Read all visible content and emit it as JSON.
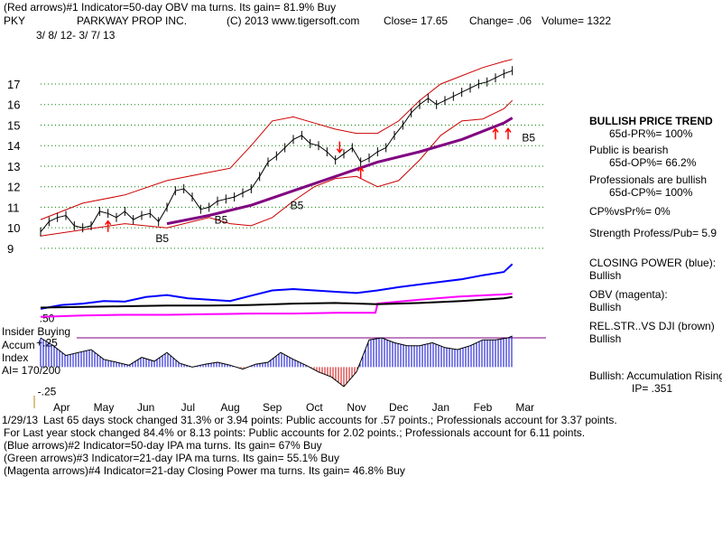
{
  "header": {
    "line1": "(Red arrows)#1 Indicator=50-day OBV ma turns. Its gain= 81.9% Buy",
    "symbol": "PKY",
    "company": "PARKWAY PROP INC.",
    "copyright": "(C) 2013 www.tigersoft.com",
    "close": "Close= 17.65",
    "change": "Change= .06",
    "volume": "Volume= 1322",
    "date_range": "3/ 8/ 12- 3/ 7/ 13"
  },
  "right_panel": {
    "trend_title": "BULLISH PRICE TREND",
    "pr": "65d-PR%= 100%",
    "public_title": "Public is bearish",
    "op": "65d-OP%= 66.2%",
    "pro_title": "Professionals are bullish",
    "cp": "65d-CP%= 100%",
    "cpvspr": "CP%vsPr%= 0%",
    "strength": "Strength Profess/Pub= 5.9",
    "closing_power_title": "CLOSING POWER (blue):",
    "closing_power_val": "Bullish",
    "obv_title": "OBV (magenta):",
    "obv_val": "Bullish",
    "relstr_title": "REL.STR..VS DJI (brown)",
    "relstr_val": "Bullish",
    "accum_title": "Bullish: Accumulation Rising",
    "ip": "IP= .351"
  },
  "left_labels": {
    "insider": "Insider Buying",
    "accum": "Accum",
    "index": "Index",
    "ai": "AI= 170/200"
  },
  "footer": {
    "line1": "Last 65 days stock changed 31.3% or 3.94 points: Public accounts for .57 points.; Professionals account for 3.37 points.",
    "overlap": "1/29/13",
    "line2": "For Last year stock changed 84.4% or 8.13 points: Public accounts for 2.02 points.; Professionals account for 6.11 points.",
    "line3": "(Blue arrows)#2 Indicator=50-day IPA ma turns. Its gain= 67% Buy",
    "line4": "(Green arrows)#3 Indicator=21-day IPA ma turns. Its gain= 55.1% Buy",
    "line5": "(Magenta arrows)#4 Indicator=21-day Closing Power ma turns. Its gain= 46.8% Buy"
  },
  "chart_data": {
    "type": "line",
    "title": "PKY PARKWAY PROP INC.",
    "price_axis": {
      "ticks": [
        17,
        16,
        15,
        14,
        13,
        12,
        11,
        10,
        9
      ],
      "ylim": [
        8.6,
        18.1
      ]
    },
    "accum_axis": {
      "ticks": [
        ".50",
        "+.25",
        "-.25"
      ],
      "ylim": [
        -0.32,
        0.55
      ]
    },
    "months": [
      "Apr",
      "May",
      "Jun",
      "Jul",
      "Aug",
      "Sep",
      "Oct",
      "Nov",
      "Dec",
      "Jan",
      "Feb",
      "Mar"
    ],
    "month_index": [
      0.5,
      1.5,
      2.5,
      3.5,
      4.5,
      5.5,
      6.5,
      7.5,
      8.5,
      9.5,
      10.5,
      11.5
    ],
    "x_range": [
      0,
      12
    ],
    "price_series": {
      "x": [
        0,
        0.2,
        0.4,
        0.6,
        0.8,
        1.0,
        1.2,
        1.4,
        1.6,
        1.8,
        2.0,
        2.2,
        2.4,
        2.6,
        2.8,
        3.0,
        3.2,
        3.4,
        3.6,
        3.8,
        4.0,
        4.2,
        4.4,
        4.6,
        4.8,
        5.0,
        5.2,
        5.4,
        5.6,
        5.8,
        6.0,
        6.2,
        6.4,
        6.6,
        6.8,
        7.0,
        7.2,
        7.4,
        7.6,
        7.8,
        8.0,
        8.2,
        8.4,
        8.6,
        8.8,
        9.0,
        9.2,
        9.4,
        9.6,
        9.8,
        10.0,
        10.2,
        10.4,
        10.6,
        10.8,
        11.0,
        11.2
      ],
      "values": [
        9.8,
        10.3,
        10.5,
        10.6,
        10.1,
        10.0,
        10.1,
        10.8,
        10.7,
        10.5,
        10.8,
        10.4,
        10.6,
        10.7,
        10.3,
        11.0,
        11.8,
        11.9,
        11.5,
        10.9,
        11.0,
        11.3,
        11.4,
        11.5,
        11.7,
        11.9,
        12.5,
        13.2,
        13.5,
        13.9,
        14.3,
        14.5,
        14.1,
        14.0,
        13.7,
        13.3,
        13.6,
        13.9,
        13.2,
        13.4,
        13.7,
        13.9,
        14.5,
        15.0,
        15.6,
        16.0,
        16.3,
        16.0,
        16.2,
        16.4,
        16.6,
        16.8,
        17.0,
        17.1,
        17.3,
        17.5,
        17.65
      ]
    },
    "ma_series": {
      "x": [
        3.0,
        4.0,
        5.0,
        6.0,
        7.0,
        8.0,
        9.0,
        10.0,
        11.0,
        11.2
      ],
      "values": [
        10.2,
        10.6,
        11.1,
        11.8,
        12.5,
        13.2,
        13.7,
        14.3,
        15.1,
        15.35
      ]
    },
    "upper_band": {
      "x": [
        0,
        1,
        2,
        3,
        4,
        4.5,
        5,
        5.5,
        6,
        6.5,
        7,
        7.5,
        8,
        8.5,
        9,
        9.5,
        10,
        10.5,
        11,
        11.2
      ],
      "values": [
        10.4,
        11.2,
        11.6,
        12.3,
        12.7,
        12.9,
        14.0,
        15.2,
        15.4,
        15.1,
        14.8,
        14.6,
        14.6,
        15.2,
        16.2,
        17.0,
        17.4,
        17.8,
        18.1,
        18.2
      ]
    },
    "lower_band": {
      "x": [
        0,
        1,
        2,
        3,
        4,
        4.5,
        5,
        5.5,
        6,
        6.5,
        7,
        7.5,
        8,
        8.5,
        9,
        9.5,
        10,
        10.5,
        11,
        11.2
      ],
      "values": [
        9.6,
        9.9,
        10.2,
        10.0,
        10.5,
        10.2,
        10.1,
        10.5,
        11.3,
        12.0,
        12.4,
        12.5,
        12.0,
        12.3,
        13.3,
        14.5,
        15.2,
        15.3,
        15.8,
        16.2
      ]
    },
    "closing_power": {
      "x": [
        0,
        0.5,
        1,
        1.5,
        2,
        2.5,
        3,
        3.5,
        4,
        4.5,
        5,
        5.5,
        6,
        6.5,
        7,
        7.5,
        8,
        8.5,
        9,
        9.5,
        10,
        10.5,
        11,
        11.2
      ],
      "values": [
        0.22,
        0.28,
        0.3,
        0.34,
        0.33,
        0.4,
        0.43,
        0.38,
        0.36,
        0.34,
        0.42,
        0.5,
        0.52,
        0.5,
        0.48,
        0.46,
        0.5,
        0.55,
        0.59,
        0.63,
        0.67,
        0.73,
        0.78,
        0.9
      ]
    },
    "obv": {
      "x": [
        0,
        1,
        2,
        3,
        4,
        5,
        6,
        7,
        7.95,
        8.0,
        9,
        10,
        11,
        11.2
      ],
      "values": [
        0.1,
        0.12,
        0.13,
        0.13,
        0.14,
        0.15,
        0.15,
        0.16,
        0.16,
        0.3,
        0.36,
        0.41,
        0.44,
        0.45
      ]
    },
    "rel_strength": {
      "x": [
        0,
        1,
        2,
        3,
        4,
        5,
        6,
        7,
        8,
        9,
        10,
        11,
        11.2
      ],
      "values": [
        0.24,
        0.25,
        0.26,
        0.27,
        0.27,
        0.28,
        0.3,
        0.31,
        0.29,
        0.31,
        0.34,
        0.38,
        0.4
      ]
    },
    "accum_series": {
      "x": [
        0,
        0.3,
        0.6,
        0.9,
        1.2,
        1.5,
        1.8,
        2.1,
        2.4,
        2.7,
        3.0,
        3.3,
        3.6,
        3.9,
        4.2,
        4.5,
        4.8,
        5.1,
        5.4,
        5.7,
        6.0,
        6.3,
        6.6,
        6.9,
        7.2,
        7.5,
        7.8,
        8.1,
        8.4,
        8.7,
        9.0,
        9.3,
        9.6,
        9.9,
        10.2,
        10.5,
        10.8,
        11.1,
        11.2
      ],
      "values": [
        0.3,
        0.22,
        0.12,
        0.15,
        0.18,
        0.08,
        0.05,
        0.02,
        0.1,
        0.06,
        0.15,
        0.04,
        0.0,
        0.03,
        0.05,
        0.02,
        -0.02,
        0.03,
        0.05,
        0.15,
        0.08,
        0.02,
        -0.05,
        -0.1,
        -0.2,
        -0.05,
        0.28,
        0.3,
        0.25,
        0.22,
        0.22,
        0.25,
        0.2,
        0.18,
        0.22,
        0.28,
        0.28,
        0.3,
        0.32
      ]
    },
    "annotations": [
      "B5",
      "B5",
      "B5",
      "B5"
    ]
  },
  "colors": {
    "price": "#000000",
    "ma": "#800080",
    "band": "#cc0000",
    "closing_power": "#0000ff",
    "obv": "#ff00ff",
    "rel_strength": "#000000",
    "accum_pos": "#0000cc",
    "accum_neg": "#cc0000",
    "grid": "#008000",
    "arrow": "#ff0000"
  }
}
